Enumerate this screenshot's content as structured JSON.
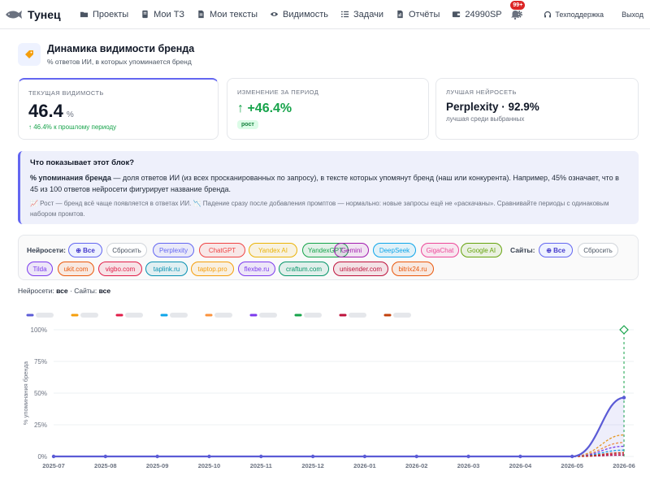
{
  "nav": {
    "brand": "Тунец",
    "items": [
      {
        "label": "Проекты",
        "icon": "folder-icon"
      },
      {
        "label": "Мои ТЗ",
        "icon": "document-icon"
      },
      {
        "label": "Мои тексты",
        "icon": "file-text-icon"
      },
      {
        "label": "Видимость",
        "icon": "eye-icon"
      },
      {
        "label": "Задачи",
        "icon": "checklist-icon"
      },
      {
        "label": "Отчёты",
        "icon": "report-icon"
      },
      {
        "label": "24990SP",
        "icon": "wallet-icon"
      }
    ],
    "notifications_badge": "99+",
    "support": "Техподдержка",
    "logout": "Выход"
  },
  "header": {
    "title": "Динамика видимости бренда",
    "subtitle": "% ответов ИИ, в которых упоминается бренд"
  },
  "cards": {
    "current": {
      "label": "ТЕКУЩАЯ ВИДИМОСТЬ",
      "value": "46.4",
      "unit": "%",
      "note": "↑ 46.4% к прошлому периоду"
    },
    "change": {
      "label": "ИЗМЕНЕНИЕ ЗА ПЕРИОД",
      "value": "↑ +46.4%",
      "badge": "рост"
    },
    "best": {
      "label": "ЛУЧШАЯ НЕЙРОСЕТЬ",
      "value": "Perplexity · 92.9%",
      "note": "лучшая среди выбранных"
    }
  },
  "info": {
    "title": "Что показывает этот блок?",
    "text_bold": "% упоминания бренда",
    "text": " — доля ответов ИИ (из всех просканированных по запросу), в тексте которых упомянут бренд (наш или конкурента). Например, 45% означает, что в 45 из 100 ответов нейросети фигурирует название бренда.",
    "note": "📈 Рост — бренд всё чаще появляется в ответах ИИ. 📉 Падение сразу после добавления промптов — нормально: новые запросы ещё не «раскачаны». Сравнивайте периоды с одинаковым набором промтов."
  },
  "filters": {
    "networks_label": "Нейросети:",
    "sites_label": "Сайты:",
    "all_label": "⊕ Все",
    "reset_label": "Сбросить",
    "networks": [
      {
        "label": "Perplexity",
        "color": "#6366f1"
      },
      {
        "label": "ChatGPT",
        "color": "#ef4444"
      },
      {
        "label": "Yandex AI",
        "color": "#eab308"
      },
      {
        "label": "YandexGPT",
        "color": "#16a34a"
      },
      {
        "label": "Gemini",
        "color": "#a21caf"
      },
      {
        "label": "DeepSeek",
        "color": "#0ea5e9"
      },
      {
        "label": "GigaChat",
        "color": "#ec4899"
      },
      {
        "label": "Google AI",
        "color": "#65a30d"
      }
    ],
    "sites": [
      {
        "label": "Tilda",
        "color": "#7c3aed"
      },
      {
        "label": "ukit.com",
        "color": "#ea580c"
      },
      {
        "label": "vigbo.com",
        "color": "#e11d48"
      },
      {
        "label": "taplink.ru",
        "color": "#0891b2"
      },
      {
        "label": "taptop.pro",
        "color": "#f59e0b"
      },
      {
        "label": "flexbe.ru",
        "color": "#7c3aed"
      },
      {
        "label": "craftum.com",
        "color": "#059669"
      },
      {
        "label": "unisender.com",
        "color": "#be123c"
      },
      {
        "label": "bitrix24.ru",
        "color": "#ea580c"
      }
    ]
  },
  "selection": {
    "networks_label": "Нейросети:",
    "networks_value": "все",
    "sites_label": "Сайты:",
    "sites_value": "все"
  },
  "chart_data": {
    "type": "line",
    "ylabel": "% упоминания бренда",
    "ylim": [
      0,
      100
    ],
    "yticks": [
      "0%",
      "25%",
      "50%",
      "75%",
      "100%"
    ],
    "grid": true,
    "legend_position": "top",
    "categories": [
      "2025-07",
      "2025-08",
      "2025-09",
      "2025-10",
      "2025-11",
      "2025-12",
      "2026-01",
      "2026-02",
      "2026-03",
      "2026-04",
      "2026-05",
      "2026-06"
    ],
    "series": [
      {
        "color": "#5b5bd6",
        "values": [
          0,
          0,
          0,
          0,
          0,
          0,
          0,
          0,
          0,
          0,
          0,
          46.4
        ]
      },
      {
        "color": "#f59e0b",
        "values": [
          0,
          0,
          0,
          0,
          0,
          0,
          0,
          0,
          0,
          0,
          0,
          17
        ]
      },
      {
        "color": "#e11d48",
        "values": [
          0,
          0,
          0,
          0,
          0,
          0,
          0,
          0,
          0,
          0,
          0,
          2
        ]
      },
      {
        "color": "#0ea5e9",
        "values": [
          0,
          0,
          0,
          0,
          0,
          0,
          0,
          0,
          0,
          0,
          0,
          5
        ]
      },
      {
        "color": "#fb923c",
        "values": [
          0,
          0,
          0,
          0,
          0,
          0,
          0,
          0,
          0,
          0,
          0,
          11
        ]
      },
      {
        "color": "#7c3aed",
        "values": [
          0,
          0,
          0,
          0,
          0,
          0,
          0,
          0,
          0,
          0,
          0,
          8
        ]
      },
      {
        "color": "#16a34a",
        "values": [
          0,
          0,
          0,
          0,
          0,
          0,
          0,
          0,
          0,
          0,
          0,
          100
        ]
      },
      {
        "color": "#be123c",
        "values": [
          0,
          0,
          0,
          0,
          0,
          0,
          0,
          0,
          0,
          0,
          0,
          1
        ]
      },
      {
        "color": "#c2410c",
        "values": [
          0,
          0,
          0,
          0,
          0,
          0,
          0,
          0,
          0,
          0,
          0,
          3
        ]
      }
    ]
  }
}
